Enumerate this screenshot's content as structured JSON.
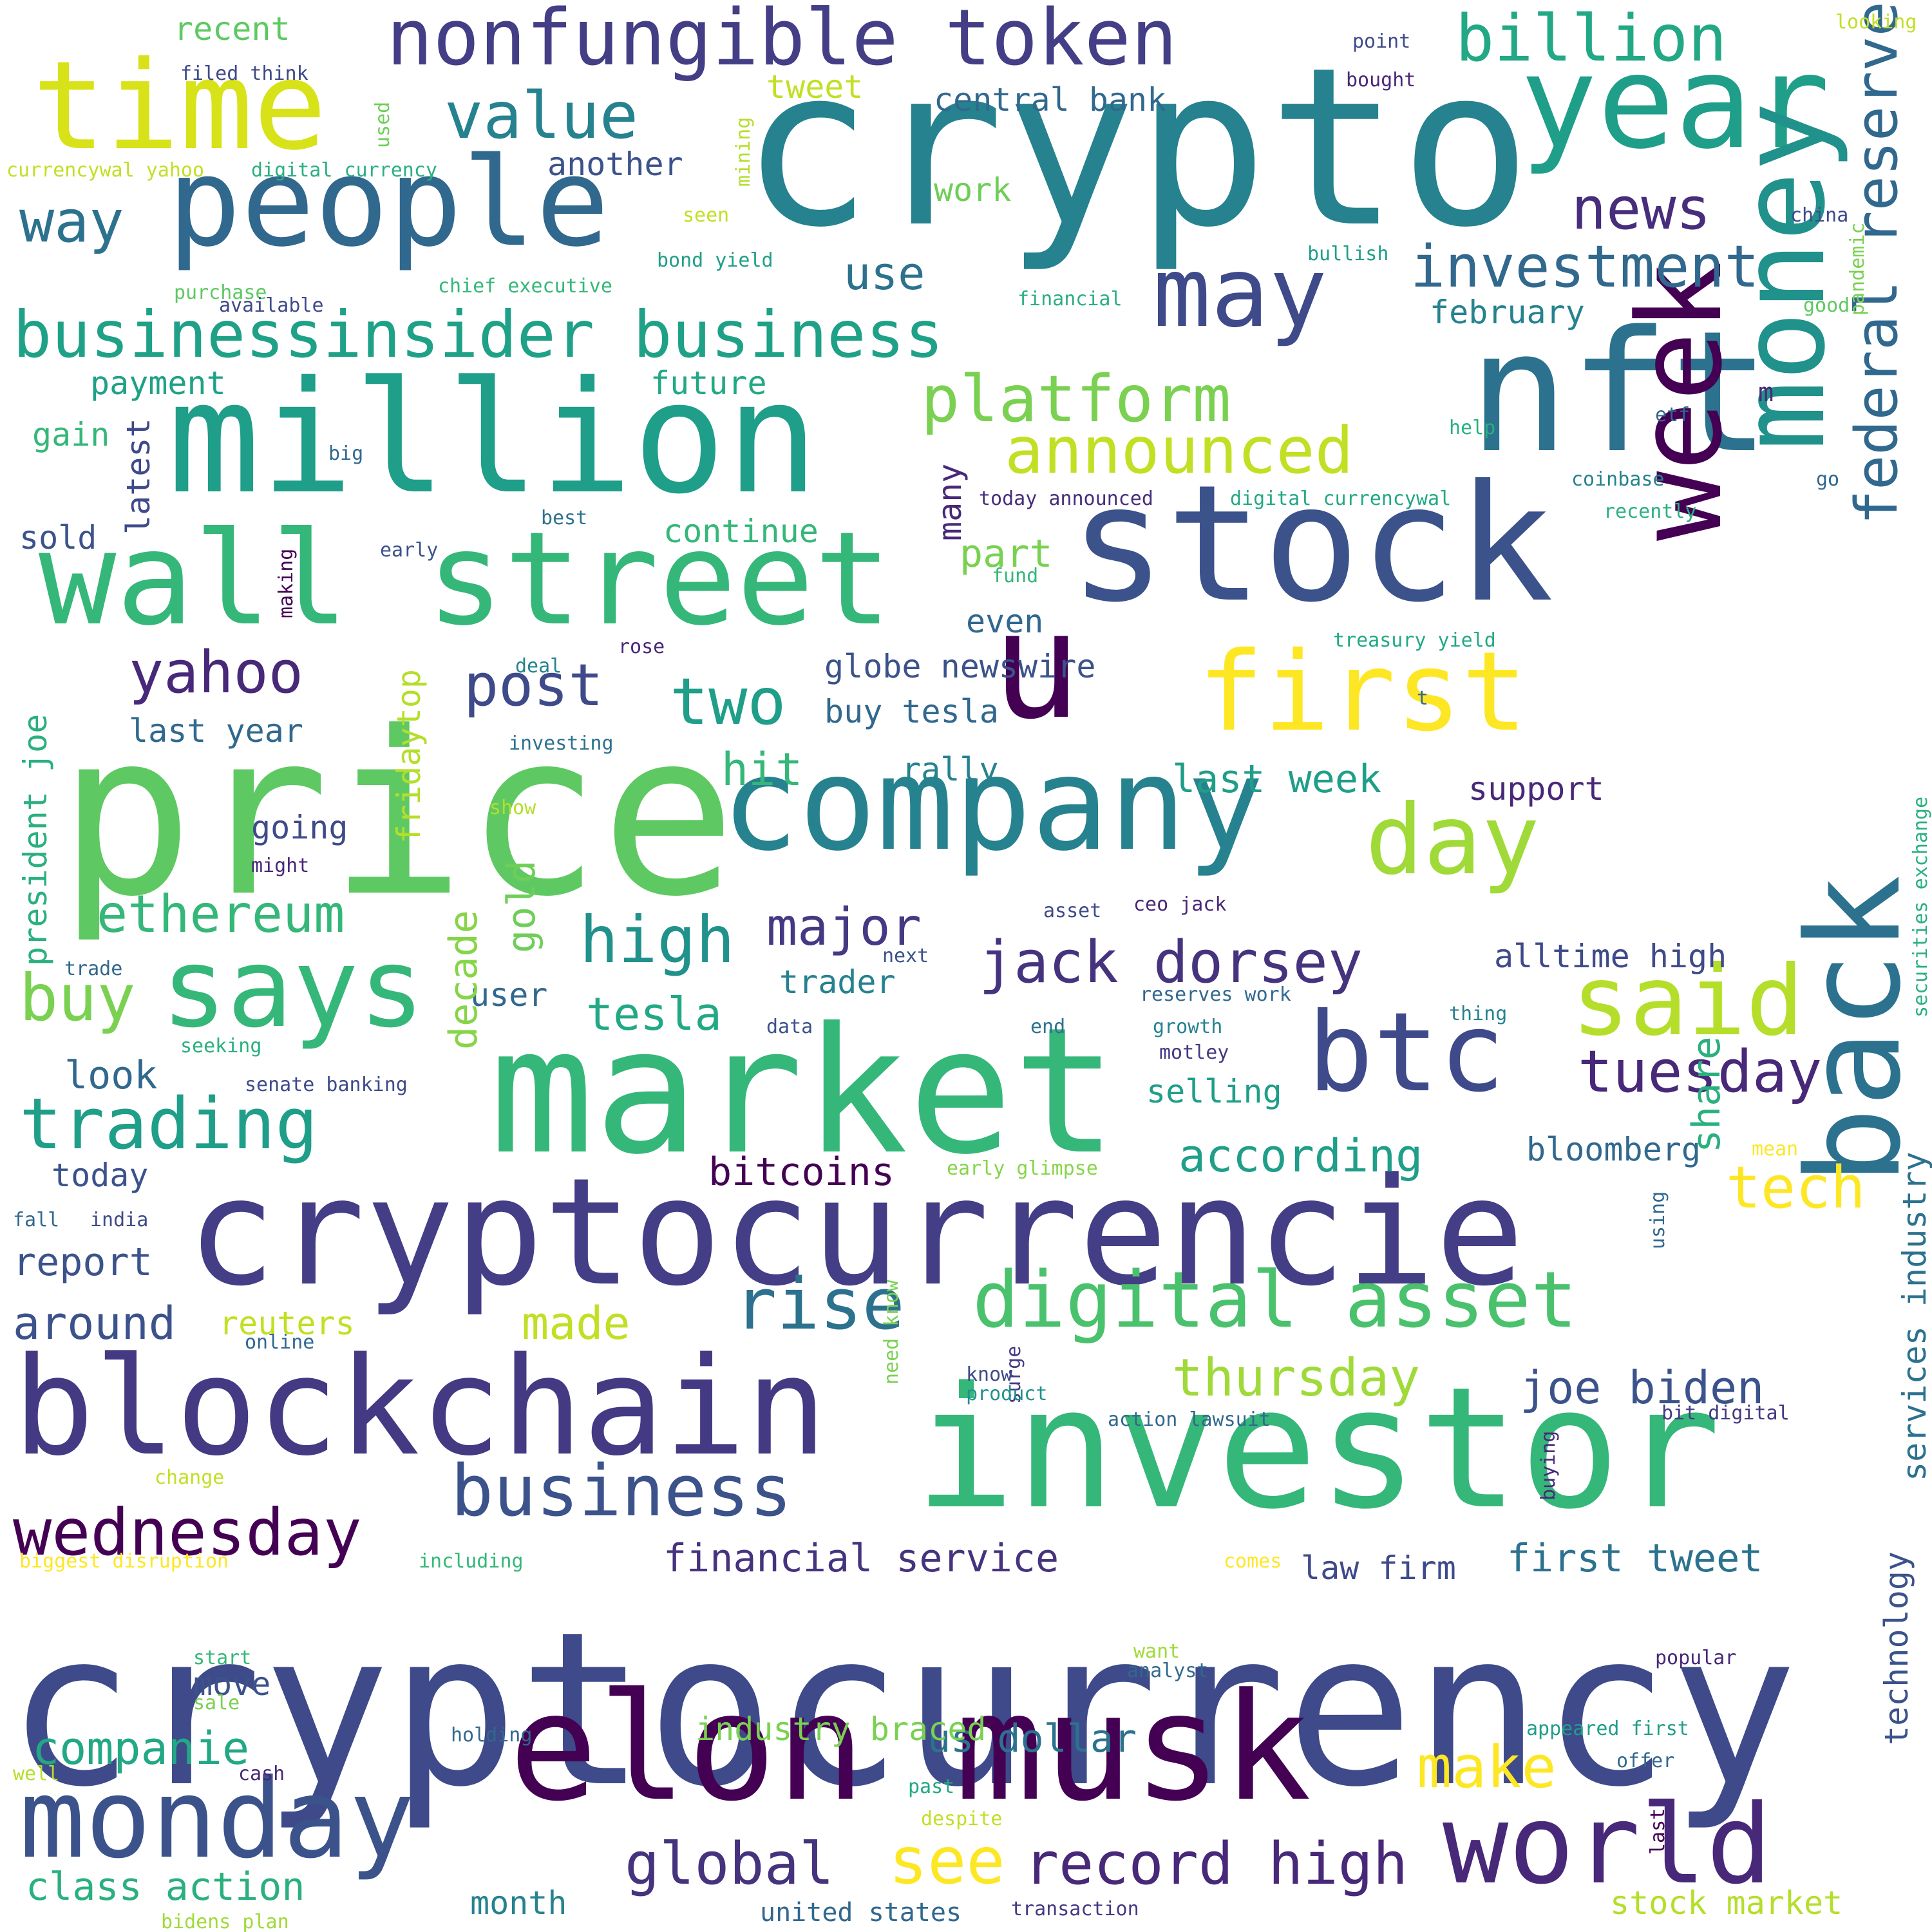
{
  "palette": {
    "dark_purple": "#440154",
    "indigo": "#3e4a89",
    "slate_blue": "#31688e",
    "teal": "#26828e",
    "green_teal": "#1f9e89",
    "green": "#35b779",
    "light_green": "#6ece58",
    "lime": "#b5de2b",
    "yellow": "#fde725"
  },
  "words": [
    {
      "text": "cryptocurrency",
      "color": "#3e4a89"
    },
    {
      "text": "crypto",
      "color": "#26828e"
    },
    {
      "text": "price",
      "color": "#5ec962"
    },
    {
      "text": "investor",
      "color": "#35b779"
    },
    {
      "text": "market",
      "color": "#35b779"
    },
    {
      "text": "cryptocurrencie",
      "color": "#433e85"
    },
    {
      "text": "elon musk",
      "color": "#440154"
    },
    {
      "text": "stock",
      "color": "#3b528b"
    },
    {
      "text": "blockchain",
      "color": "#443983"
    },
    {
      "text": "million",
      "color": "#1f9e89"
    },
    {
      "text": "wall street",
      "color": "#35b779"
    },
    {
      "text": "company",
      "color": "#26828e"
    },
    {
      "text": "people",
      "color": "#31688e"
    },
    {
      "text": "nft",
      "color": "#2c728e"
    },
    {
      "text": "year",
      "color": "#1f9e89"
    },
    {
      "text": "time",
      "color": "#d8e219"
    },
    {
      "text": "u",
      "color": "#440154"
    },
    {
      "text": "first",
      "color": "#fde725"
    },
    {
      "text": "week",
      "color": "#440154"
    },
    {
      "text": "money",
      "color": "#21918c"
    },
    {
      "text": "back",
      "color": "#2c728e"
    },
    {
      "text": "monday",
      "color": "#3b528b"
    },
    {
      "text": "world",
      "color": "#482878"
    },
    {
      "text": "says",
      "color": "#35b779"
    },
    {
      "text": "btc",
      "color": "#3e4a89"
    },
    {
      "text": "said",
      "color": "#b5de2b"
    },
    {
      "text": "day",
      "color": "#a0da39"
    },
    {
      "text": "may",
      "color": "#3e4a89"
    },
    {
      "text": "nonfungible token",
      "color": "#433e85"
    },
    {
      "text": "businessinsider business",
      "color": "#1fa187"
    },
    {
      "text": "digital asset",
      "color": "#4ac16d"
    },
    {
      "text": "federal reserve",
      "color": "#31688e"
    },
    {
      "text": "jack dorsey",
      "color": "#46337e"
    },
    {
      "text": "rise",
      "color": "#2c728e"
    },
    {
      "text": "tuesday",
      "color": "#482878"
    },
    {
      "text": "trading",
      "color": "#1f9e89"
    },
    {
      "text": "business",
      "color": "#3b528b"
    },
    {
      "text": "wednesday",
      "color": "#440154"
    },
    {
      "text": "investment",
      "color": "#31688e"
    },
    {
      "text": "billion",
      "color": "#22a884"
    },
    {
      "text": "value",
      "color": "#26828e"
    },
    {
      "text": "platform",
      "color": "#7ad151"
    },
    {
      "text": "announced",
      "color": "#c2df23"
    },
    {
      "text": "way",
      "color": "#2c728e"
    },
    {
      "text": "yahoo",
      "color": "#482878"
    },
    {
      "text": "two",
      "color": "#1f9e89"
    },
    {
      "text": "post",
      "color": "#3e4a89"
    },
    {
      "text": "ethereum",
      "color": "#35b779"
    },
    {
      "text": "high",
      "color": "#21918c"
    },
    {
      "text": "major",
      "color": "#443983"
    },
    {
      "text": "buy",
      "color": "#7ad151"
    },
    {
      "text": "news",
      "color": "#472d7b"
    },
    {
      "text": "tech",
      "color": "#fde725"
    },
    {
      "text": "see",
      "color": "#fde725"
    },
    {
      "text": "make",
      "color": "#fde725"
    },
    {
      "text": "thursday",
      "color": "#a0da39"
    },
    {
      "text": "joe biden",
      "color": "#3b528b"
    },
    {
      "text": "record high",
      "color": "#482878"
    },
    {
      "text": "global",
      "color": "#46337e"
    },
    {
      "text": "companie",
      "color": "#22a884"
    },
    {
      "text": "class action",
      "color": "#2ab07f"
    },
    {
      "text": "financial service",
      "color": "#46337e"
    },
    {
      "text": "us dollar",
      "color": "#2c728e"
    },
    {
      "text": "industry braced",
      "color": "#7ad151"
    },
    {
      "text": "first tweet",
      "color": "#2c728e"
    },
    {
      "text": "law firm",
      "color": "#3e4a89"
    },
    {
      "text": "according",
      "color": "#1f9e89"
    },
    {
      "text": "tesla",
      "color": "#22a884"
    },
    {
      "text": "trader",
      "color": "#26828e"
    },
    {
      "text": "alltime high",
      "color": "#3e4a89"
    },
    {
      "text": "selling",
      "color": "#1f9e89"
    },
    {
      "text": "bitcoins",
      "color": "#440154"
    },
    {
      "text": "bloomberg",
      "color": "#31688e"
    },
    {
      "text": "report",
      "color": "#3b528b"
    },
    {
      "text": "around",
      "color": "#3b528b"
    },
    {
      "text": "made",
      "color": "#c2df23"
    },
    {
      "text": "reuters",
      "color": "#c2df23"
    },
    {
      "text": "share",
      "color": "#2ab07f"
    },
    {
      "text": "move",
      "color": "#3b528b"
    },
    {
      "text": "month",
      "color": "#26828e"
    },
    {
      "text": "look",
      "color": "#31688e"
    },
    {
      "text": "today",
      "color": "#3b528b"
    },
    {
      "text": "user",
      "color": "#31688e"
    },
    {
      "text": "going",
      "color": "#3e4a89"
    },
    {
      "text": "gold",
      "color": "#6ece58"
    },
    {
      "text": "decade",
      "color": "#86d549"
    },
    {
      "text": "part",
      "color": "#7ad151"
    },
    {
      "text": "even",
      "color": "#31688e"
    },
    {
      "text": "globe newswire",
      "color": "#3b528b"
    },
    {
      "text": "buy tesla",
      "color": "#31688e"
    },
    {
      "text": "rally",
      "color": "#26828e"
    },
    {
      "text": "hit",
      "color": "#35b779"
    },
    {
      "text": "last week",
      "color": "#1f9e89"
    },
    {
      "text": "support",
      "color": "#482878"
    },
    {
      "text": "continue",
      "color": "#35b779"
    },
    {
      "text": "use",
      "color": "#2c728e"
    },
    {
      "text": "future",
      "color": "#22a884"
    },
    {
      "text": "february",
      "color": "#26828e"
    },
    {
      "text": "work",
      "color": "#6ece58"
    },
    {
      "text": "central bank",
      "color": "#31688e"
    },
    {
      "text": "another",
      "color": "#3b528b"
    },
    {
      "text": "tweet",
      "color": "#c2df23"
    },
    {
      "text": "recent",
      "color": "#5ec962"
    },
    {
      "text": "payment",
      "color": "#1fa187"
    },
    {
      "text": "gain",
      "color": "#35b779"
    },
    {
      "text": "sold",
      "color": "#3b528b"
    },
    {
      "text": "last year",
      "color": "#31688e"
    },
    {
      "text": "fridaytop",
      "color": "#b5de2b"
    },
    {
      "text": "president joe",
      "color": "#2ab07f"
    },
    {
      "text": "latest",
      "color": "#3e4a89"
    },
    {
      "text": "many",
      "color": "#482878"
    },
    {
      "text": "technology",
      "color": "#3b528b"
    },
    {
      "text": "services industry",
      "color": "#2c728e"
    },
    {
      "text": "stock market",
      "color": "#b5de2b"
    },
    {
      "text": "united states",
      "color": "#31688e"
    },
    {
      "text": "transaction",
      "color": "#443983"
    },
    {
      "text": "bidens plan",
      "color": "#a0da39"
    },
    {
      "text": "filed think",
      "color": "#3e4a89"
    },
    {
      "text": "currencywal yahoo",
      "color": "#c2df23"
    },
    {
      "text": "digital currency",
      "color": "#2ab07f"
    },
    {
      "text": "used",
      "color": "#6ece58"
    },
    {
      "text": "mining",
      "color": "#b5de2b"
    },
    {
      "text": "seen",
      "color": "#c2df23"
    },
    {
      "text": "bond yield",
      "color": "#1f9e89"
    },
    {
      "text": "chief executive",
      "color": "#35b779"
    },
    {
      "text": "purchase",
      "color": "#5ec962"
    },
    {
      "text": "available",
      "color": "#3e4a89"
    },
    {
      "text": "big",
      "color": "#31688e"
    },
    {
      "text": "making",
      "color": "#440154"
    },
    {
      "text": "early",
      "color": "#3b528b"
    },
    {
      "text": "best",
      "color": "#2c728e"
    },
    {
      "text": "rose",
      "color": "#482878"
    },
    {
      "text": "deal",
      "color": "#26828e"
    },
    {
      "text": "investing",
      "color": "#2c728e"
    },
    {
      "text": "show",
      "color": "#b5de2b"
    },
    {
      "text": "might",
      "color": "#482878"
    },
    {
      "text": "trade",
      "color": "#31688e"
    },
    {
      "text": "seeking",
      "color": "#2ab07f"
    },
    {
      "text": "senate banking",
      "color": "#3e4a89"
    },
    {
      "text": "fall",
      "color": "#31688e"
    },
    {
      "text": "india",
      "color": "#3e4a89"
    },
    {
      "text": "online",
      "color": "#31688e"
    },
    {
      "text": "change",
      "color": "#c2df23"
    },
    {
      "text": "biggest disruption",
      "color": "#fde725"
    },
    {
      "text": "including",
      "color": "#35b779"
    },
    {
      "text": "need know",
      "color": "#7ad151"
    },
    {
      "text": "surge",
      "color": "#443983"
    },
    {
      "text": "start",
      "color": "#35b779"
    },
    {
      "text": "sale",
      "color": "#7ad151"
    },
    {
      "text": "holding",
      "color": "#31688e"
    },
    {
      "text": "well",
      "color": "#b5de2b"
    },
    {
      "text": "cash",
      "color": "#482878"
    },
    {
      "text": "past",
      "color": "#22a884"
    },
    {
      "text": "despite",
      "color": "#c2df23"
    },
    {
      "text": "want",
      "color": "#a0da39"
    },
    {
      "text": "analyst",
      "color": "#31688e"
    },
    {
      "text": "early glimpse",
      "color": "#86d549"
    },
    {
      "text": "end",
      "color": "#2c728e"
    },
    {
      "text": "growth",
      "color": "#26828e"
    },
    {
      "text": "motley",
      "color": "#443983"
    },
    {
      "text": "data",
      "color": "#3b528b"
    },
    {
      "text": "asset",
      "color": "#3e4a89"
    },
    {
      "text": "ceo jack",
      "color": "#482878"
    },
    {
      "text": "next",
      "color": "#3b528b"
    },
    {
      "text": "reserves work",
      "color": "#31688e"
    },
    {
      "text": "thing",
      "color": "#26828e"
    },
    {
      "text": "action lawsuit",
      "color": "#31688e"
    },
    {
      "text": "know",
      "color": "#3e4a89"
    },
    {
      "text": "product",
      "color": "#21918c"
    },
    {
      "text": "bit digital",
      "color": "#443983"
    },
    {
      "text": "comes",
      "color": "#fde725"
    },
    {
      "text": "buying",
      "color": "#482878"
    },
    {
      "text": "popular",
      "color": "#482878"
    },
    {
      "text": "appeared first",
      "color": "#1f9e89"
    },
    {
      "text": "offer",
      "color": "#31688e"
    },
    {
      "text": "last",
      "color": "#440154"
    },
    {
      "text": "fund",
      "color": "#35b779"
    },
    {
      "text": "treasury yield",
      "color": "#22a884"
    },
    {
      "text": "t",
      "color": "#31688e"
    },
    {
      "text": "mean",
      "color": "#fde725"
    },
    {
      "text": "securities exchange",
      "color": "#2ab07f"
    },
    {
      "text": "using",
      "color": "#31688e"
    },
    {
      "text": "today announced",
      "color": "#472d7b"
    },
    {
      "text": "digital currencywal",
      "color": "#22a884"
    },
    {
      "text": "coinbase",
      "color": "#26828e"
    },
    {
      "text": "recently",
      "color": "#2ab07f"
    },
    {
      "text": "go",
      "color": "#31688e"
    },
    {
      "text": "help",
      "color": "#2ab07f"
    },
    {
      "text": "etf",
      "color": "#31688e"
    },
    {
      "text": "m",
      "color": "#482878"
    },
    {
      "text": "pandemic",
      "color": "#7ad151"
    },
    {
      "text": "good",
      "color": "#5ec962"
    },
    {
      "text": "financial",
      "color": "#2ab07f"
    },
    {
      "text": "bullish",
      "color": "#1f9e89"
    },
    {
      "text": "china",
      "color": "#3e4a89"
    },
    {
      "text": "point",
      "color": "#3e4a89"
    },
    {
      "text": "bought",
      "color": "#482878"
    },
    {
      "text": "looking",
      "color": "#c2df23"
    }
  ]
}
